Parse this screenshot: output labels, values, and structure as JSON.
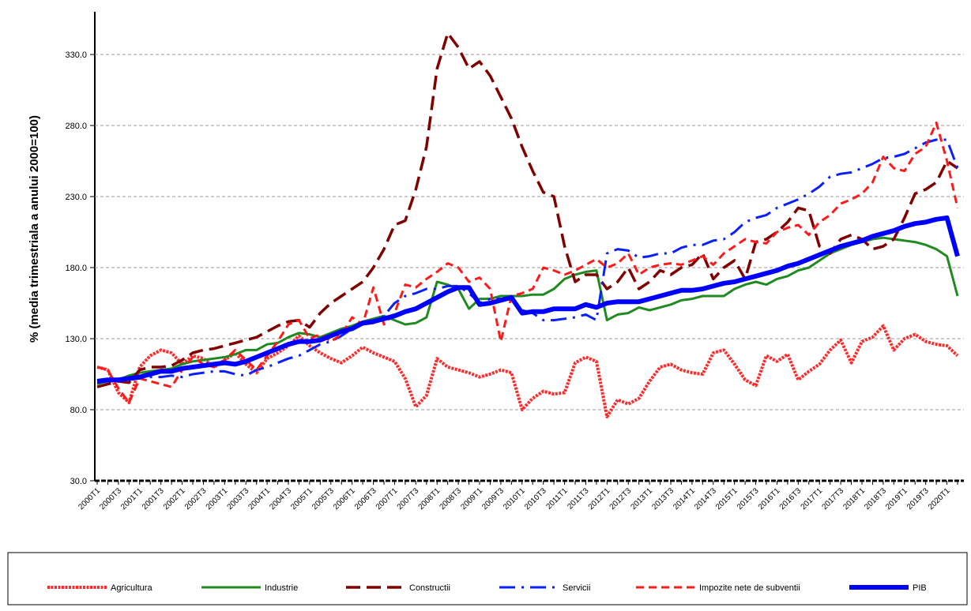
{
  "chart_data": {
    "type": "line",
    "y_label": "% (media trimestriala a anului 2000=100)",
    "categories": [
      "2000T1",
      null,
      "2000T3",
      null,
      "2001T1",
      null,
      "2001T3",
      null,
      "2002T1",
      null,
      "2002T3",
      null,
      "2003T1",
      null,
      "2003T3",
      null,
      "2004T1",
      null,
      "2004T3",
      null,
      "2005T1",
      null,
      "2005T3",
      null,
      "2006T1",
      null,
      "2006T3",
      null,
      "2007T1",
      null,
      "2007T3",
      null,
      "2008T1",
      null,
      "2008T3",
      null,
      "2009T1",
      null,
      "2009T3",
      null,
      "2010T1",
      null,
      "2010T3",
      null,
      "2011T1",
      null,
      "2011T3",
      null,
      "2012T1",
      null,
      "2012T3",
      null,
      "2013T1",
      null,
      "2013T3",
      null,
      "2014T1",
      null,
      "2014T3",
      null,
      "2015T1",
      null,
      "2015T3",
      null,
      "2016T1",
      null,
      "2016T3",
      null,
      "2017T1",
      null,
      "2017T3",
      null,
      "2018T1",
      null,
      "2018T3",
      null,
      "2019T1",
      null,
      "2019T3",
      null,
      "2020T1",
      null
    ],
    "ylim": [
      30,
      360
    ],
    "yticks": [
      {
        "value": 30,
        "label": "30.0"
      },
      {
        "value": 80,
        "label": "80.0"
      },
      {
        "value": 130,
        "label": "130.0"
      },
      {
        "value": 180,
        "label": "180.0"
      },
      {
        "value": 230,
        "label": "230.0"
      },
      {
        "value": 280,
        "label": "280.0"
      },
      {
        "value": 330,
        "label": "330.0"
      }
    ],
    "grid": true,
    "series": [
      {
        "name": "Agricultura",
        "color": "#ff2a2a",
        "values": [
          110,
          108,
          92,
          85,
          110,
          118,
          122,
          120,
          112,
          118,
          116,
          110,
          115,
          120,
          112,
          106,
          116,
          120,
          125,
          132,
          125,
          120,
          116,
          113,
          118,
          124,
          120,
          117,
          114,
          102,
          82,
          90,
          116,
          110,
          108,
          106,
          103,
          105,
          108,
          106,
          80,
          88,
          93,
          91,
          92,
          113,
          117,
          114,
          75,
          87,
          84,
          88,
          100,
          110,
          112,
          108,
          106,
          105,
          120,
          122,
          112,
          101,
          97,
          118,
          114,
          119,
          101,
          107,
          112,
          122,
          129,
          113,
          128,
          131,
          139,
          122,
          130,
          133,
          128,
          126,
          125,
          118
        ]
      },
      {
        "name": "Industrie",
        "color": "#1f8a1f",
        "values": [
          98,
          100,
          101,
          104,
          106,
          107,
          108,
          109,
          112,
          114,
          115,
          116,
          117,
          119,
          122,
          122,
          126,
          127,
          131,
          134,
          133,
          131,
          134,
          137,
          139,
          142,
          144,
          146,
          143,
          140,
          141,
          145,
          170,
          168,
          165,
          151,
          158,
          158,
          160,
          160,
          160,
          161,
          161,
          165,
          172,
          175,
          177,
          178,
          143,
          147,
          148,
          152,
          150,
          152,
          154,
          157,
          158,
          160,
          160,
          160,
          165,
          168,
          170,
          168,
          172,
          174,
          178,
          180,
          185,
          190,
          193,
          196,
          198,
          200,
          201,
          200,
          199,
          198,
          196,
          193,
          188,
          160
        ]
      },
      {
        "name": "Constructii",
        "color": "#800000",
        "values": [
          96,
          98,
          100,
          99,
          108,
          110,
          110,
          111,
          115,
          120,
          122,
          123,
          125,
          127,
          129,
          131,
          135,
          139,
          142,
          143,
          138,
          148,
          155,
          160,
          165,
          170,
          180,
          193,
          210,
          213,
          235,
          265,
          320,
          345,
          335,
          320,
          325,
          315,
          300,
          285,
          265,
          248,
          233,
          230,
          195,
          170,
          175,
          175,
          165,
          170,
          180,
          165,
          170,
          178,
          175,
          180,
          182,
          190,
          172,
          180,
          185,
          172,
          198,
          200,
          205,
          212,
          222,
          220,
          195,
          190,
          200,
          203,
          200,
          193,
          195,
          200,
          215,
          232,
          235,
          240,
          255,
          250
        ]
      },
      {
        "name": "Servicii",
        "color": "#0a1fff",
        "values": [
          99,
          100,
          100,
          101,
          102,
          103,
          103,
          104,
          103,
          105,
          106,
          107,
          107,
          105,
          104,
          108,
          110,
          113,
          116,
          118,
          122,
          126,
          128,
          132,
          137,
          140,
          141,
          146,
          155,
          160,
          162,
          165,
          165,
          167,
          167,
          162,
          155,
          158,
          158,
          158,
          150,
          148,
          143,
          143,
          144,
          145,
          147,
          143,
          190,
          193,
          192,
          187,
          188,
          190,
          190,
          194,
          196,
          196,
          199,
          200,
          205,
          212,
          215,
          217,
          222,
          225,
          228,
          232,
          237,
          244,
          246,
          247,
          250,
          253,
          257,
          258,
          260,
          264,
          268,
          270,
          270,
          250
        ]
      },
      {
        "name": "Impozite nete de subventii",
        "color": "#ff1a1a",
        "values": [
          110,
          108,
          95,
          85,
          102,
          100,
          98,
          96,
          108,
          117,
          112,
          110,
          115,
          122,
          115,
          108,
          118,
          128,
          140,
          143,
          130,
          133,
          128,
          133,
          145,
          140,
          166,
          140,
          148,
          168,
          166,
          172,
          177,
          183,
          180,
          170,
          173,
          165,
          128,
          160,
          162,
          165,
          180,
          178,
          175,
          178,
          182,
          186,
          180,
          183,
          190,
          175,
          180,
          182,
          183,
          182,
          185,
          188,
          182,
          190,
          195,
          200,
          198,
          197,
          205,
          208,
          210,
          203,
          212,
          217,
          225,
          228,
          232,
          240,
          258,
          250,
          248,
          260,
          265,
          282,
          255,
          222
        ]
      },
      {
        "name": "PIB",
        "color": "#0000ff",
        "values": [
          100,
          101,
          101,
          102,
          103,
          105,
          107,
          107,
          109,
          110,
          111,
          112,
          113,
          112,
          114,
          117,
          120,
          123,
          126,
          128,
          128,
          129,
          132,
          135,
          137,
          141,
          142,
          144,
          146,
          149,
          151,
          155,
          159,
          163,
          166,
          166,
          154,
          155,
          157,
          159,
          148,
          149,
          149,
          151,
          151,
          151,
          154,
          152,
          155,
          156,
          156,
          156,
          158,
          160,
          162,
          164,
          164,
          165,
          167,
          169,
          170,
          172,
          174,
          176,
          178,
          181,
          183,
          186,
          189,
          192,
          195,
          197,
          199,
          202,
          204,
          206,
          209,
          211,
          212,
          214,
          215,
          188
        ]
      }
    ]
  }
}
